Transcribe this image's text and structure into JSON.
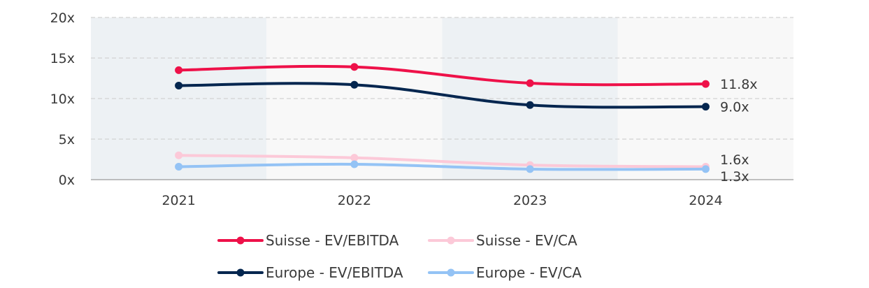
{
  "chart_data": {
    "type": "line",
    "title": "",
    "xlabel": "",
    "ylabel": "",
    "categories": [
      "2021",
      "2022",
      "2023",
      "2024"
    ],
    "ylim": [
      0,
      20
    ],
    "y_ticks": [
      0,
      5,
      10,
      15,
      20
    ],
    "y_tick_labels": [
      "0x",
      "5x",
      "10x",
      "15x",
      "20x"
    ],
    "grid": "horizontal dashed",
    "legend_position": "bottom",
    "series": [
      {
        "name": "Suisse - EV/EBITDA",
        "values": [
          13.5,
          13.9,
          11.9,
          11.8
        ],
        "color": "#ee1149",
        "end_label": "11.8x"
      },
      {
        "name": "Suisse - EV/CA",
        "values": [
          3.0,
          2.7,
          1.8,
          1.6
        ],
        "color": "#fcc9d8",
        "end_label": "1.6x"
      },
      {
        "name": "Europe - EV/EBITDA",
        "values": [
          11.6,
          11.7,
          9.2,
          9.0
        ],
        "color": "#04264f",
        "end_label": "9.0x"
      },
      {
        "name": "Europe - EV/CA",
        "values": [
          1.6,
          1.9,
          1.3,
          1.3
        ],
        "color": "#94c3f5",
        "end_label": "1.3x"
      }
    ]
  }
}
